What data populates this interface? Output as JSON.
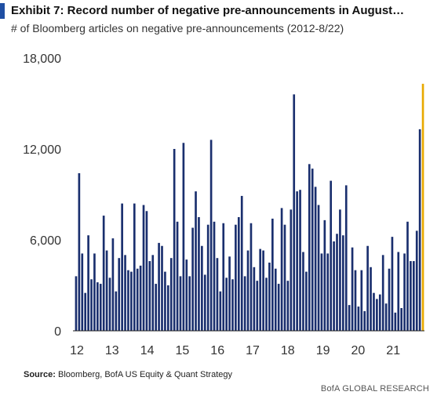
{
  "header": {
    "title": "Exhibit 7: Record number of negative pre-announcements in August…",
    "subtitle": "# of Bloomberg articles on negative pre-announcements (2012-8/22)"
  },
  "footer": {
    "source_label": "Source:",
    "source_text": "Bloomberg, BofA US Equity & Quant Strategy",
    "brand": "BofA GLOBAL RESEARCH"
  },
  "chart_data": {
    "type": "bar",
    "title": "Exhibit 7: Record number of negative pre-announcements in August…",
    "subtitle": "# of Bloomberg articles on negative pre-announcements (2012-8/22)",
    "xlabel": "",
    "ylabel": "",
    "ylim": [
      0,
      18000
    ],
    "yticks": [
      "18,000",
      "12,000",
      "6,000",
      "0"
    ],
    "ytick_values": [
      18000,
      12000,
      6000,
      0
    ],
    "xticks": [
      "12",
      "13",
      "14",
      "15",
      "16",
      "17",
      "18",
      "19",
      "20",
      "21"
    ],
    "grid": false,
    "bar_color": "#1a2f6e",
    "highlight_color": "#e8a900",
    "values": [
      3600,
      10400,
      5100,
      2500,
      6300,
      3400,
      5100,
      3200,
      3100,
      7600,
      5300,
      3500,
      6100,
      2600,
      4800,
      8400,
      5000,
      4000,
      3900,
      8400,
      4100,
      4300,
      8300,
      7900,
      4600,
      5000,
      3100,
      5800,
      5600,
      3900,
      3000,
      4800,
      12000,
      7200,
      3600,
      12400,
      4700,
      3600,
      6800,
      9200,
      7500,
      5600,
      3700,
      7000,
      12600,
      7200,
      4800,
      2600,
      7100,
      3500,
      4900,
      3400,
      7000,
      7500,
      8900,
      3600,
      5300,
      7100,
      4200,
      3300,
      5400,
      5300,
      3500,
      4500,
      7400,
      4100,
      3100,
      8100,
      7000,
      3300,
      8000,
      15600,
      9200,
      9300,
      5200,
      3900,
      11000,
      10700,
      9500,
      8300,
      5100,
      7300,
      5100,
      9900,
      5900,
      6400,
      8000,
      6300,
      9600,
      1700,
      5500,
      4000,
      1600,
      4000,
      1300,
      5600,
      4200,
      2500,
      2100,
      2400,
      5000,
      1800,
      4100,
      6200,
      1200,
      5200,
      1500,
      5100,
      7200,
      4600,
      4600,
      6600,
      13300,
      16300
    ],
    "highlight_last": 1
  }
}
